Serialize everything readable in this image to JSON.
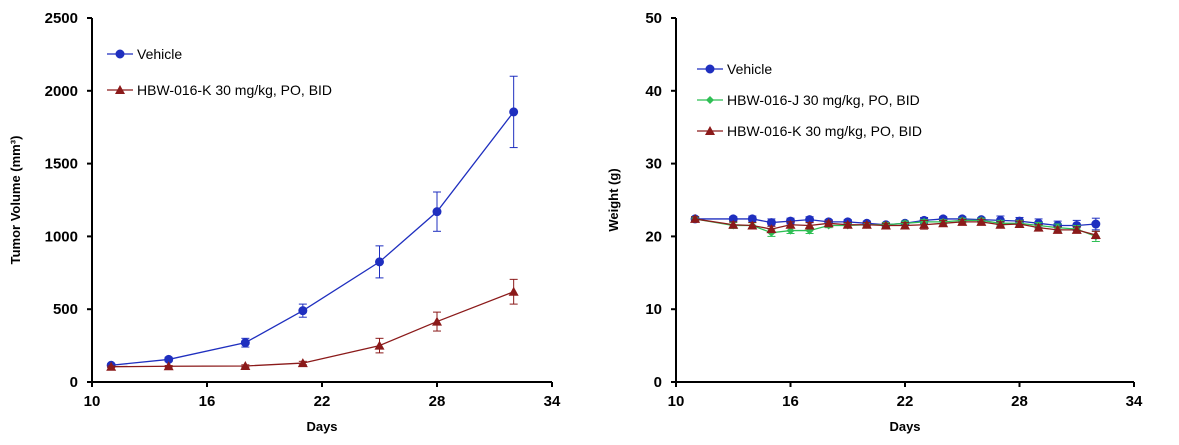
{
  "chart_data": [
    {
      "type": "line",
      "xlabel": "Days",
      "ylabel": "Tumor Volume (mm³)",
      "xlim": [
        10,
        34
      ],
      "ylim": [
        0,
        2500
      ],
      "xticks": [
        10,
        16,
        22,
        28,
        34
      ],
      "yticks": [
        0,
        500,
        1000,
        1500,
        2000,
        2500
      ],
      "legend_position": "top-left",
      "series": [
        {
          "name": "Vehicle",
          "color": "#1f2fbf",
          "marker": "circle",
          "x": [
            11,
            14,
            18,
            21,
            25,
            28,
            32
          ],
          "y": [
            115,
            155,
            270,
            490,
            825,
            1170,
            1855
          ],
          "err": [
            10,
            15,
            30,
            45,
            110,
            135,
            245
          ]
        },
        {
          "name": "HBW-016-K 30 mg/kg, PO, BID",
          "color": "#8b1a1a",
          "marker": "triangle",
          "x": [
            11,
            14,
            18,
            21,
            25,
            28,
            32
          ],
          "y": [
            105,
            108,
            110,
            130,
            250,
            415,
            620
          ],
          "err": [
            5,
            5,
            8,
            12,
            50,
            65,
            85
          ]
        }
      ]
    },
    {
      "type": "line",
      "xlabel": "Days",
      "ylabel": "Weight (g)",
      "xlim": [
        10,
        34
      ],
      "ylim": [
        0,
        50
      ],
      "xticks": [
        10,
        16,
        22,
        28,
        34
      ],
      "yticks": [
        0,
        10,
        20,
        30,
        40,
        50
      ],
      "legend_position": "top-left",
      "series": [
        {
          "name": "Vehicle",
          "color": "#1f2fbf",
          "marker": "circle",
          "x": [
            11,
            13,
            14,
            15,
            16,
            17,
            18,
            19,
            20,
            21,
            22,
            23,
            24,
            25,
            26,
            27,
            28,
            29,
            30,
            31,
            32
          ],
          "y": [
            22.4,
            22.4,
            22.4,
            21.9,
            22.1,
            22.3,
            22.0,
            22.0,
            21.8,
            21.6,
            21.8,
            22.2,
            22.4,
            22.4,
            22.3,
            22.2,
            22.1,
            21.8,
            21.5,
            21.5,
            21.7
          ],
          "err": [
            0.3,
            0.3,
            0.4,
            0.5,
            0.4,
            0.4,
            0.3,
            0.3,
            0.3,
            0.3,
            0.3,
            0.4,
            0.3,
            0.3,
            0.3,
            0.6,
            0.5,
            0.6,
            0.6,
            0.7,
            0.8
          ]
        },
        {
          "name": "HBW-016-J 30 mg/kg, PO, BID",
          "color": "#2fbf55",
          "marker": "diamond",
          "x": [
            11,
            13,
            14,
            15,
            16,
            17,
            18,
            19,
            20,
            21,
            22,
            23,
            24,
            25,
            26,
            27,
            28,
            29,
            30,
            31,
            32
          ],
          "y": [
            22.4,
            21.5,
            21.5,
            20.5,
            20.8,
            20.8,
            21.5,
            21.5,
            21.6,
            21.6,
            21.8,
            22.0,
            22.0,
            22.2,
            22.2,
            21.8,
            21.8,
            21.5,
            21.2,
            21.0,
            20.0
          ],
          "err": [
            0.3,
            0.4,
            0.4,
            0.5,
            0.4,
            0.4,
            0.3,
            0.3,
            0.3,
            0.3,
            0.3,
            0.3,
            0.3,
            0.3,
            0.3,
            0.4,
            0.4,
            0.4,
            0.5,
            0.5,
            0.7
          ]
        },
        {
          "name": "HBW-016-K 30 mg/kg, PO, BID",
          "color": "#8b1a1a",
          "marker": "triangle",
          "x": [
            11,
            13,
            14,
            15,
            16,
            17,
            18,
            19,
            20,
            21,
            22,
            23,
            24,
            25,
            26,
            27,
            28,
            29,
            30,
            31,
            32
          ],
          "y": [
            22.4,
            21.6,
            21.5,
            21.0,
            21.6,
            21.5,
            21.8,
            21.6,
            21.6,
            21.5,
            21.5,
            21.6,
            21.8,
            22.0,
            22.0,
            21.6,
            21.7,
            21.2,
            20.9,
            20.9,
            20.2
          ],
          "err": [
            0.3,
            0.4,
            0.4,
            0.4,
            0.4,
            0.4,
            0.3,
            0.3,
            0.3,
            0.3,
            0.4,
            0.6,
            0.4,
            0.3,
            0.3,
            0.4,
            0.4,
            0.4,
            0.4,
            0.4,
            0.5
          ]
        }
      ]
    }
  ]
}
